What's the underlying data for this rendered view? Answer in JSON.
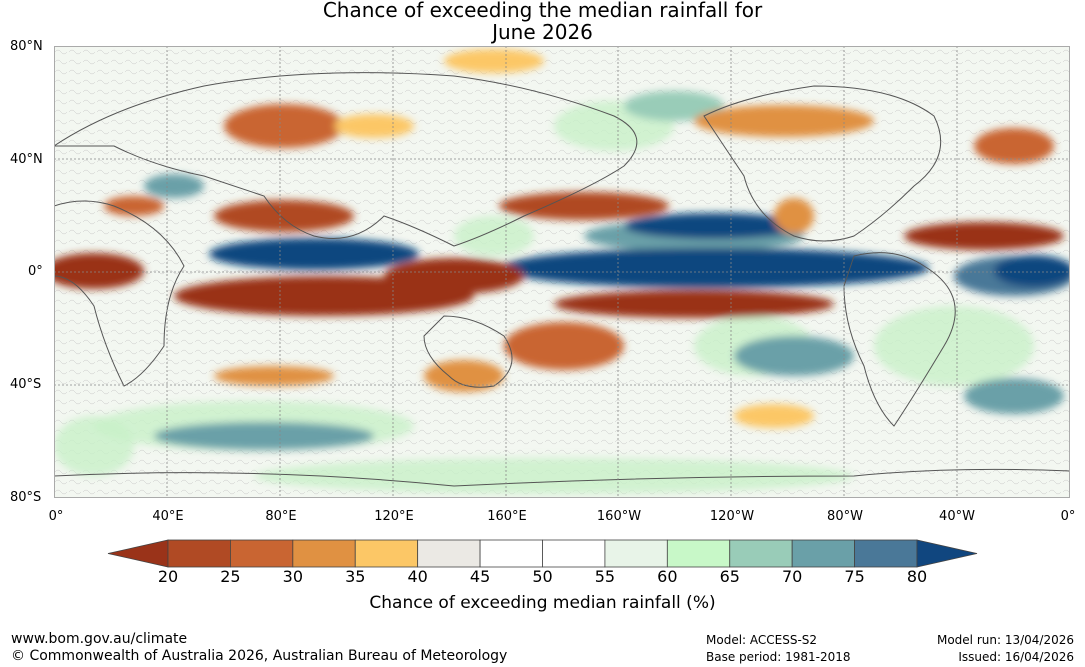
{
  "title": {
    "line1": "Chance of exceeding the median rainfall for",
    "line2": "June 2026"
  },
  "map": {
    "lat_labels": [
      "80°N",
      "40°N",
      "0°",
      "40°S",
      "80°S"
    ],
    "lon_labels": [
      "0°",
      "40°E",
      "80°E",
      "120°E",
      "160°E",
      "160°W",
      "120°W",
      "80°W",
      "40°W",
      "0°"
    ]
  },
  "colorbar": {
    "label": "Chance of exceeding median rainfall (%)",
    "ticks": [
      "20",
      "25",
      "30",
      "35",
      "40",
      "45",
      "50",
      "55",
      "60",
      "65",
      "70",
      "75",
      "80"
    ],
    "colors": [
      "#9a3319",
      "#b04a24",
      "#c96532",
      "#e09142",
      "#fcc766",
      "#ebe9e4",
      "#ffffff",
      "#ffffff",
      "#e8f4e8",
      "#c8f8c8",
      "#99ccb8",
      "#6aa0a8",
      "#4a7898",
      "#10467f"
    ]
  },
  "footer": {
    "website": "www.bom.gov.au/climate",
    "copyright": "© Commonwealth of Australia 2026, Australian Bureau of Meteorology",
    "model": "Model: ACCESS-S2",
    "base_period": "Base period: 1981-2018",
    "model_run": "Model run: 13/04/2026",
    "issued": "Issued: 16/04/2026"
  }
}
